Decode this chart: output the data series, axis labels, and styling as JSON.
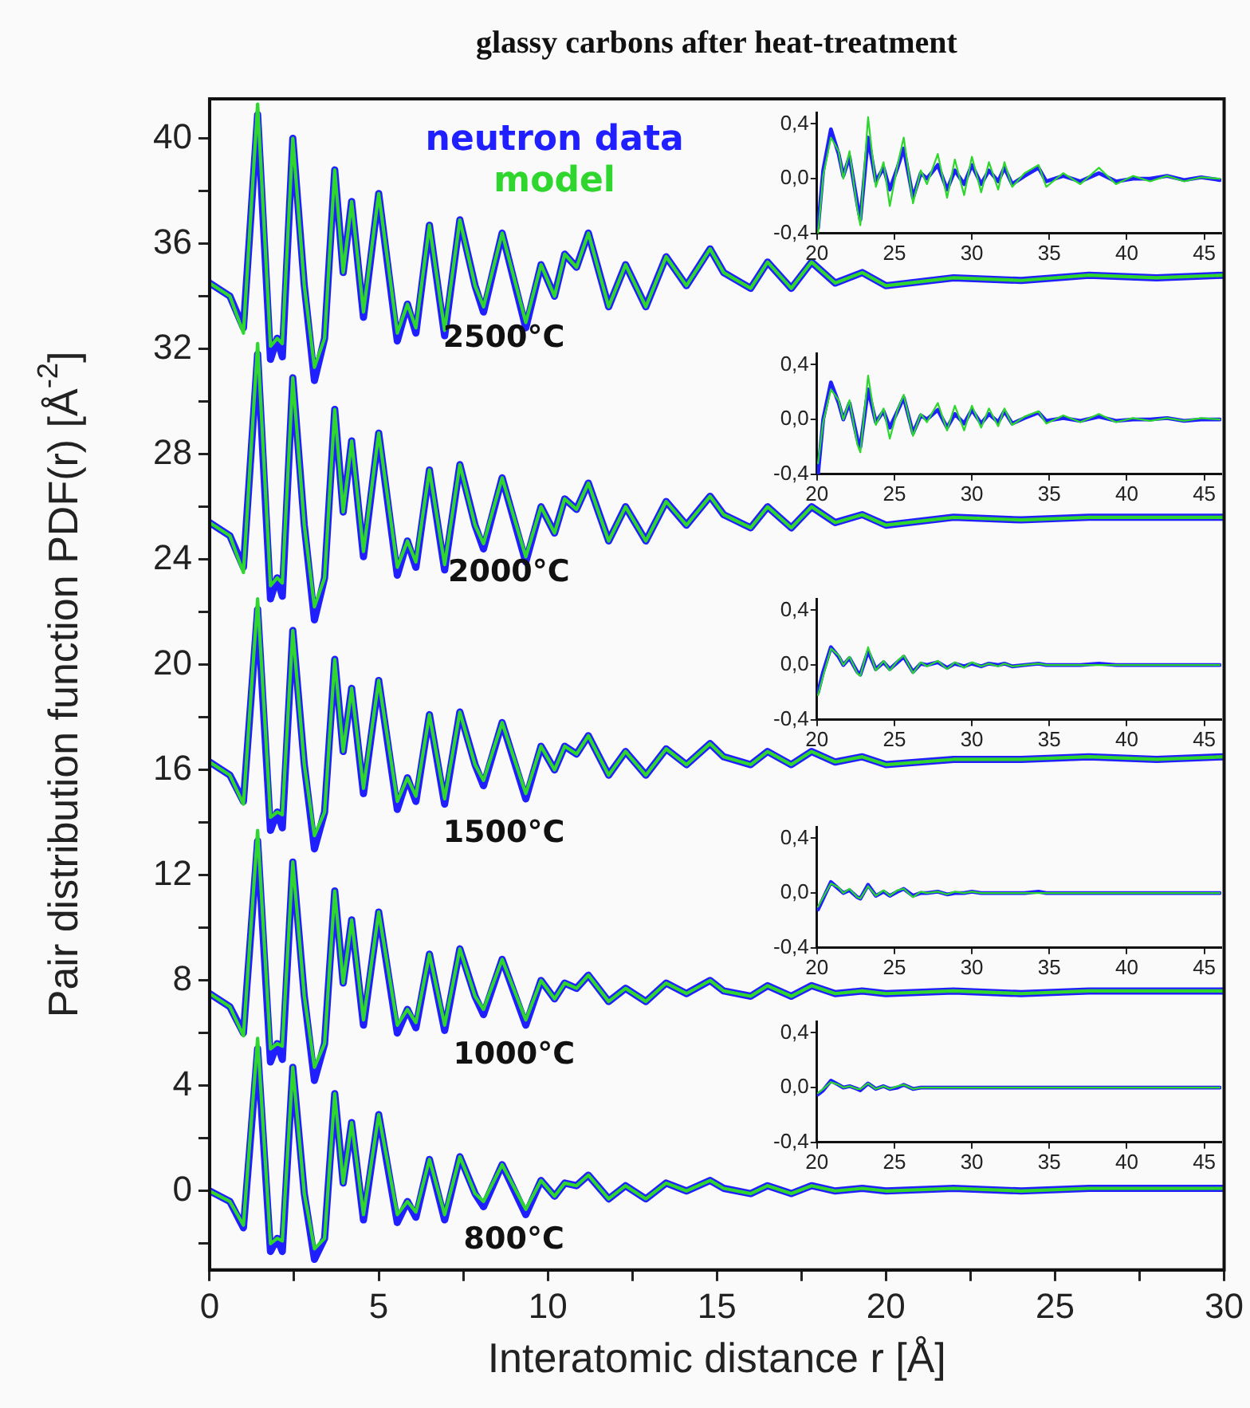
{
  "chart_data": [
    {
      "type": "line",
      "title": "glassy carbons after heat-treatment",
      "xlabel": "Interatomic distance r [Å]",
      "ylabel": "Pair distribution function PDF(r) [Å$^{-2}$]",
      "legend": "top",
      "marker": "none",
      "grid": false,
      "xlim": [
        0,
        30
      ],
      "ylim": [
        -3,
        41.5
      ],
      "xticks": [
        0,
        {
          "value": 2.5,
          "label": null
        },
        5,
        {
          "value": 7.5,
          "label": null
        },
        10,
        {
          "value": 12.5,
          "label": null
        },
        15,
        {
          "value": 17.5,
          "label": null
        },
        20,
        {
          "value": 22.5,
          "label": null
        },
        25,
        {
          "value": 27.5,
          "label": null
        },
        30
      ],
      "yticks": [
        {
          "value": -2,
          "label": null
        },
        0,
        {
          "value": 2,
          "label": null
        },
        4,
        {
          "value": 6,
          "label": null
        },
        8,
        {
          "value": 10,
          "label": null
        },
        12,
        {
          "value": 14,
          "label": null
        },
        16,
        {
          "value": 18,
          "label": null
        },
        20,
        {
          "value": 22,
          "label": null
        },
        24,
        {
          "value": 26,
          "label": null
        },
        28,
        {
          "value": 30,
          "label": null
        },
        32,
        {
          "value": 34,
          "label": null
        },
        36,
        {
          "value": 38,
          "label": null
        },
        40
      ],
      "x": [
        0,
        0.6,
        1.0,
        1.42,
        1.8,
        2.0,
        2.15,
        2.46,
        2.8,
        3.1,
        3.4,
        3.7,
        3.95,
        4.2,
        4.55,
        5.0,
        5.55,
        5.85,
        6.1,
        6.5,
        6.95,
        7.4,
        7.85,
        8.1,
        8.65,
        9.35,
        9.8,
        10.2,
        10.5,
        10.85,
        11.2,
        11.8,
        12.3,
        12.9,
        13.5,
        14.1,
        14.8,
        15.2,
        16.0,
        16.5,
        17.2,
        17.8,
        18.5,
        19.3,
        20,
        22,
        24,
        26,
        28,
        30
      ],
      "series": [
        {
          "name": "neutron data",
          "color": "#1f1fff",
          "values": [
            34.5,
            34.0,
            32.8,
            40.9,
            31.6,
            32.4,
            31.7,
            40.0,
            34.4,
            30.8,
            32.4,
            38.8,
            34.9,
            37.6,
            33.2,
            37.9,
            32.3,
            33.7,
            32.6,
            36.7,
            32.5,
            36.9,
            34.4,
            33.4,
            36.4,
            32.8,
            35.2,
            34.0,
            35.6,
            35.1,
            36.4,
            33.6,
            35.2,
            33.6,
            35.5,
            34.4,
            35.8,
            34.9,
            34.3,
            35.3,
            34.3,
            35.3,
            34.5,
            34.9,
            34.4,
            34.7,
            34.6,
            34.8,
            34.7,
            34.8
          ]
        },
        {
          "name": "model",
          "color": "#2ed62e",
          "values": [
            34.5,
            34.0,
            32.6,
            41.3,
            32.1,
            32.4,
            32.2,
            40.0,
            34.4,
            31.3,
            32.4,
            38.8,
            34.9,
            37.6,
            33.4,
            37.9,
            32.6,
            33.7,
            32.8,
            36.7,
            32.7,
            36.9,
            34.4,
            33.6,
            36.4,
            33.0,
            35.2,
            34.0,
            35.6,
            35.1,
            36.4,
            33.6,
            35.2,
            33.6,
            35.5,
            34.4,
            35.8,
            34.9,
            34.3,
            35.3,
            34.3,
            35.3,
            34.5,
            34.9,
            34.4,
            34.7,
            34.6,
            34.8,
            34.7,
            34.8
          ]
        },
        {
          "color": "#1f1fff",
          "values": [
            25.4,
            24.9,
            23.7,
            31.8,
            22.5,
            23.3,
            22.6,
            30.9,
            25.3,
            21.7,
            23.3,
            29.7,
            25.8,
            28.5,
            24.1,
            28.8,
            23.4,
            24.7,
            23.7,
            27.4,
            23.6,
            27.6,
            25.3,
            24.4,
            27.1,
            23.9,
            26.0,
            25.0,
            26.3,
            25.9,
            26.9,
            24.7,
            26.0,
            24.7,
            26.2,
            25.3,
            26.4,
            25.7,
            25.2,
            26.0,
            25.2,
            26.0,
            25.4,
            25.7,
            25.3,
            25.6,
            25.5,
            25.6,
            25.6,
            25.6
          ]
        },
        {
          "color": "#2ed62e",
          "values": [
            25.4,
            24.9,
            23.5,
            32.2,
            23.0,
            23.3,
            23.1,
            30.9,
            25.3,
            22.2,
            23.3,
            29.7,
            25.8,
            28.5,
            24.3,
            28.8,
            23.7,
            24.7,
            23.9,
            27.4,
            23.8,
            27.6,
            25.3,
            24.6,
            27.1,
            24.1,
            26.0,
            25.0,
            26.3,
            25.9,
            26.9,
            24.7,
            26.0,
            24.7,
            26.2,
            25.3,
            26.4,
            25.7,
            25.2,
            26.0,
            25.2,
            26.0,
            25.4,
            25.7,
            25.3,
            25.6,
            25.5,
            25.6,
            25.6,
            25.6
          ]
        },
        {
          "color": "#1f1fff",
          "values": [
            16.3,
            15.8,
            14.8,
            22.1,
            13.7,
            14.4,
            13.8,
            21.3,
            16.2,
            13.0,
            14.4,
            20.2,
            16.7,
            19.1,
            15.1,
            19.4,
            14.5,
            15.7,
            14.8,
            18.1,
            14.7,
            18.2,
            16.2,
            15.4,
            17.8,
            14.9,
            16.9,
            16.0,
            16.9,
            16.6,
            17.3,
            15.8,
            16.7,
            15.8,
            16.8,
            16.2,
            17.0,
            16.5,
            16.2,
            16.7,
            16.2,
            16.7,
            16.3,
            16.5,
            16.2,
            16.4,
            16.4,
            16.5,
            16.4,
            16.5
          ]
        },
        {
          "color": "#2ed62e",
          "values": [
            16.3,
            15.8,
            14.7,
            22.5,
            14.2,
            14.4,
            14.3,
            21.3,
            16.2,
            13.5,
            14.4,
            20.2,
            16.7,
            19.1,
            15.3,
            19.4,
            14.8,
            15.7,
            15.0,
            18.1,
            14.9,
            18.2,
            16.2,
            15.6,
            17.8,
            15.1,
            16.9,
            16.0,
            16.9,
            16.6,
            17.3,
            15.8,
            16.7,
            15.8,
            16.8,
            16.2,
            17.0,
            16.5,
            16.2,
            16.7,
            16.2,
            16.7,
            16.3,
            16.5,
            16.2,
            16.4,
            16.4,
            16.5,
            16.4,
            16.5
          ]
        },
        {
          "color": "#1f1fff",
          "values": [
            7.5,
            7.0,
            6.0,
            13.3,
            4.9,
            5.6,
            5.0,
            12.5,
            7.4,
            4.2,
            5.6,
            11.4,
            7.9,
            10.3,
            6.3,
            10.6,
            6.0,
            6.9,
            6.2,
            9.0,
            6.1,
            9.2,
            7.4,
            6.7,
            8.8,
            6.3,
            8.0,
            7.3,
            7.9,
            7.7,
            8.2,
            7.2,
            7.7,
            7.2,
            7.9,
            7.5,
            8.0,
            7.6,
            7.4,
            7.8,
            7.4,
            7.8,
            7.5,
            7.6,
            7.5,
            7.6,
            7.5,
            7.6,
            7.6,
            7.6
          ]
        },
        {
          "color": "#2ed62e",
          "values": [
            7.5,
            7.0,
            5.9,
            13.7,
            5.4,
            5.6,
            5.5,
            12.5,
            7.4,
            4.7,
            5.6,
            11.4,
            7.9,
            10.3,
            6.5,
            10.6,
            6.3,
            6.9,
            6.4,
            9.0,
            6.3,
            9.2,
            7.4,
            6.9,
            8.8,
            6.5,
            8.0,
            7.3,
            7.9,
            7.7,
            8.2,
            7.2,
            7.7,
            7.2,
            7.9,
            7.5,
            8.0,
            7.6,
            7.4,
            7.8,
            7.4,
            7.8,
            7.5,
            7.6,
            7.5,
            7.6,
            7.5,
            7.6,
            7.6,
            7.6
          ]
        },
        {
          "color": "#1f1fff",
          "values": [
            0,
            -0.4,
            -1.4,
            5.4,
            -2.3,
            -1.8,
            -2.3,
            4.7,
            -0.1,
            -2.6,
            -1.8,
            3.7,
            0.3,
            2.6,
            -1.1,
            2.9,
            -1.2,
            -0.4,
            -1.0,
            1.2,
            -1.1,
            1.3,
            -0.1,
            -0.6,
            1.0,
            -0.9,
            0.4,
            -0.2,
            0.3,
            0.2,
            0.6,
            -0.3,
            0.2,
            -0.3,
            0.3,
            0,
            0.4,
            0.1,
            -0.1,
            0.2,
            -0.1,
            0.2,
            0,
            0.1,
            0,
            0.1,
            0,
            0.1,
            0.1,
            0.1
          ]
        },
        {
          "color": "#2ed62e",
          "values": [
            0,
            -0.4,
            -1.3,
            5.8,
            -2.0,
            -1.8,
            -1.9,
            4.7,
            -0.1,
            -2.2,
            -1.8,
            3.7,
            0.3,
            2.6,
            -0.9,
            2.9,
            -0.9,
            -0.4,
            -0.8,
            1.2,
            -0.9,
            1.3,
            -0.1,
            -0.4,
            1.0,
            -0.7,
            0.4,
            -0.2,
            0.3,
            0.2,
            0.6,
            -0.3,
            0.2,
            -0.3,
            0.3,
            0,
            0.4,
            0.1,
            -0.1,
            0.2,
            -0.1,
            0.2,
            0,
            0.1,
            0,
            0.1,
            0,
            0.1,
            0.1,
            0.1
          ]
        }
      ],
      "annotations": [
        "2500°C",
        "2000°C",
        "1500°C",
        "1000°C",
        "800°C"
      ]
    },
    {
      "type": "line",
      "marker": "none",
      "legend": false,
      "xlim": [
        20,
        46.1
      ],
      "ylim": [
        -0.4,
        0.48
      ],
      "xticks": [
        20,
        25,
        30,
        35,
        40,
        45
      ],
      "yticks": [
        {
          "value": -0.4,
          "label": "-0,4"
        },
        {
          "value": 0,
          "label": "0,0"
        },
        {
          "value": 0.4,
          "label": "0,4"
        }
      ],
      "x": [
        20.07,
        20.4,
        20.9,
        21.4,
        21.7,
        22.1,
        22.6,
        22.8,
        23.3,
        23.8,
        24.3,
        24.7,
        25.2,
        25.6,
        26.2,
        26.7,
        27.1,
        27.8,
        28.4,
        28.9,
        29.5,
        30.0,
        30.6,
        31.1,
        31.7,
        32.1,
        32.6,
        33.4,
        34.3,
        34.8,
        35.9,
        37.0,
        38.2,
        39.3,
        40.4,
        41.5,
        42.6,
        43.7,
        44.8,
        46.0
      ],
      "series": [
        {
          "color": "#1f1fff",
          "values": [
            -0.36,
            0.06,
            0.36,
            0.18,
            0.02,
            0.16,
            -0.18,
            -0.3,
            0.3,
            -0.02,
            0.08,
            -0.08,
            0.08,
            0.22,
            -0.14,
            0.04,
            0,
            0.1,
            -0.08,
            0.06,
            -0.04,
            0.1,
            -0.04,
            0.06,
            -0.02,
            0.08,
            -0.04,
            0.02,
            0.08,
            -0.02,
            0.02,
            -0.02,
            0.04,
            -0.02,
            0,
            0,
            0.02,
            -0.01,
            0.01,
            -0.01
          ]
        },
        {
          "color": "#2ed62e",
          "values": [
            -0.4,
            0.02,
            0.3,
            0.2,
            0.0,
            0.2,
            -0.22,
            -0.34,
            0.45,
            -0.06,
            0.12,
            -0.2,
            0.1,
            0.3,
            -0.18,
            0.06,
            -0.04,
            0.18,
            -0.14,
            0.14,
            -0.12,
            0.16,
            -0.1,
            0.12,
            -0.08,
            0.12,
            -0.06,
            0.04,
            0.1,
            -0.06,
            0.04,
            -0.04,
            0.08,
            -0.04,
            0.02,
            -0.02,
            0.02,
            -0.02,
            0.01,
            0.0
          ]
        }
      ]
    },
    {
      "type": "line",
      "marker": "none",
      "legend": false,
      "xlim": [
        20,
        46.1
      ],
      "ylim": [
        -0.4,
        0.48
      ],
      "xticks": [
        20,
        25,
        30,
        35,
        40,
        45
      ],
      "yticks": [
        {
          "value": -0.4,
          "label": "-0,4"
        },
        {
          "value": 0,
          "label": "0,0"
        },
        {
          "value": 0.4,
          "label": "0,4"
        }
      ],
      "x": [
        20.07,
        20.4,
        20.9,
        21.4,
        21.7,
        22.1,
        22.6,
        22.8,
        23.3,
        23.8,
        24.3,
        24.7,
        25.2,
        25.6,
        26.2,
        26.7,
        27.1,
        27.8,
        28.4,
        28.9,
        29.5,
        30.0,
        30.6,
        31.1,
        31.7,
        32.1,
        32.6,
        33.4,
        34.3,
        34.8,
        35.9,
        37.0,
        38.2,
        39.3,
        40.4,
        41.5,
        42.6,
        43.7,
        44.8,
        46.0
      ],
      "series": [
        {
          "color": "#1f1fff",
          "values": [
            -0.4,
            0.0,
            0.27,
            0.12,
            0.0,
            0.12,
            -0.14,
            -0.2,
            0.22,
            -0.02,
            0.06,
            -0.06,
            0.06,
            0.16,
            -0.1,
            0.03,
            0,
            0.07,
            -0.06,
            0.04,
            -0.03,
            0.07,
            -0.03,
            0.04,
            -0.02,
            0.06,
            -0.03,
            0.01,
            0.05,
            -0.01,
            0.01,
            -0.01,
            0.02,
            -0.01,
            0,
            0,
            0.01,
            -0.01,
            0,
            0
          ]
        },
        {
          "color": "#2ed62e",
          "values": [
            -0.32,
            -0.02,
            0.22,
            0.14,
            0.0,
            0.14,
            -0.18,
            -0.24,
            0.32,
            -0.04,
            0.08,
            -0.14,
            0.07,
            0.18,
            -0.12,
            0.04,
            -0.02,
            0.12,
            -0.08,
            0.1,
            -0.08,
            0.1,
            -0.06,
            0.08,
            -0.05,
            0.08,
            -0.04,
            0.02,
            0.06,
            -0.03,
            0.03,
            -0.02,
            0.04,
            -0.02,
            0.01,
            -0.01,
            0.01,
            -0.01,
            0.01,
            0
          ]
        }
      ]
    },
    {
      "type": "line",
      "marker": "none",
      "legend": false,
      "xlim": [
        20,
        46.1
      ],
      "ylim": [
        -0.4,
        0.48
      ],
      "xticks": [
        20,
        25,
        30,
        35,
        40,
        45
      ],
      "yticks": [
        {
          "value": -0.4,
          "label": "-0,4"
        },
        {
          "value": 0,
          "label": "0,0"
        },
        {
          "value": 0.4,
          "label": "0,4"
        }
      ],
      "x": [
        20.07,
        20.4,
        20.9,
        21.4,
        21.7,
        22.1,
        22.6,
        22.8,
        23.3,
        23.8,
        24.3,
        24.7,
        25.2,
        25.6,
        26.2,
        26.7,
        27.1,
        27.8,
        28.4,
        28.9,
        29.5,
        30.0,
        30.6,
        31.1,
        31.7,
        32.1,
        32.6,
        33.4,
        34.3,
        34.8,
        35.9,
        37.0,
        38.2,
        39.3,
        40.4,
        41.5,
        42.6,
        43.7,
        44.8,
        46.0
      ],
      "series": [
        {
          "color": "#1f1fff",
          "values": [
            -0.2,
            -0.05,
            0.13,
            0.06,
            0.0,
            0.05,
            -0.05,
            -0.07,
            0.1,
            -0.03,
            0.02,
            -0.03,
            0.02,
            0.06,
            -0.05,
            0.01,
            0,
            0.02,
            -0.02,
            0.01,
            -0.01,
            0.01,
            -0.01,
            0.01,
            0,
            0.01,
            -0.01,
            0,
            0.01,
            0,
            0,
            0,
            0.01,
            0,
            0,
            0,
            0,
            0,
            0,
            0
          ]
        },
        {
          "color": "#2ed62e",
          "values": [
            -0.22,
            -0.08,
            0.12,
            0.07,
            0.0,
            0.06,
            -0.06,
            -0.08,
            0.13,
            -0.04,
            0.03,
            -0.04,
            0.03,
            0.07,
            -0.06,
            0.02,
            -0.01,
            0.03,
            -0.03,
            0.02,
            -0.02,
            0.02,
            -0.01,
            0.01,
            -0.01,
            0.01,
            -0.01,
            0,
            0.01,
            0,
            0,
            0,
            0,
            0,
            0,
            0,
            0,
            0,
            0,
            0
          ]
        }
      ]
    },
    {
      "type": "line",
      "marker": "none",
      "legend": false,
      "xlim": [
        20,
        46.1
      ],
      "ylim": [
        -0.4,
        0.48
      ],
      "xticks": [
        20,
        25,
        30,
        35,
        40,
        45
      ],
      "yticks": [
        {
          "value": -0.4,
          "label": "-0,4"
        },
        {
          "value": 0,
          "label": "0,0"
        },
        {
          "value": 0.4,
          "label": "0,4"
        }
      ],
      "x": [
        20.07,
        20.4,
        20.9,
        21.4,
        21.7,
        22.1,
        22.6,
        22.8,
        23.3,
        23.8,
        24.3,
        24.7,
        25.2,
        25.6,
        26.2,
        26.7,
        27.1,
        27.8,
        28.4,
        28.9,
        29.5,
        30.0,
        30.6,
        31.1,
        31.7,
        32.1,
        32.6,
        33.4,
        34.3,
        34.8,
        35.9,
        37.0,
        38.2,
        39.3,
        40.4,
        41.5,
        42.6,
        43.7,
        44.8,
        46.0
      ],
      "series": [
        {
          "color": "#1f1fff",
          "values": [
            -0.12,
            -0.04,
            0.08,
            0.03,
            0,
            0.02,
            -0.03,
            -0.04,
            0.06,
            -0.02,
            0.01,
            -0.02,
            0.01,
            0.03,
            -0.02,
            0,
            0,
            0.01,
            -0.01,
            0,
            0,
            0.01,
            0,
            0,
            0,
            0,
            0,
            0,
            0.01,
            0,
            0,
            0,
            0,
            0,
            0,
            0,
            0,
            0,
            0,
            0
          ]
        },
        {
          "color": "#2ed62e",
          "values": [
            -0.1,
            -0.03,
            0.07,
            0.04,
            0,
            0.03,
            -0.03,
            -0.04,
            0.05,
            -0.02,
            0.02,
            -0.02,
            0.02,
            0.03,
            -0.03,
            0.01,
            0,
            0.01,
            -0.01,
            0.01,
            0,
            0.01,
            0,
            0,
            0,
            0,
            0,
            0,
            0,
            0,
            0,
            0,
            0,
            0,
            0,
            0,
            0,
            0,
            0,
            0
          ]
        }
      ]
    },
    {
      "type": "line",
      "marker": "none",
      "legend": false,
      "xlim": [
        20,
        46.1
      ],
      "ylim": [
        -0.4,
        0.48
      ],
      "xticks": [
        20,
        25,
        30,
        35,
        40,
        45
      ],
      "yticks": [
        {
          "value": -0.4,
          "label": "-0,4"
        },
        {
          "value": 0,
          "label": "0,0"
        },
        {
          "value": 0.4,
          "label": "0,4"
        }
      ],
      "x": [
        20.07,
        20.4,
        20.9,
        21.4,
        21.7,
        22.1,
        22.6,
        22.8,
        23.3,
        23.8,
        24.3,
        24.7,
        25.2,
        25.6,
        26.2,
        26.7,
        27.1,
        27.8,
        28.4,
        28.9,
        29.5,
        30.0,
        30.6,
        31.1,
        31.7,
        32.1,
        32.6,
        33.4,
        34.3,
        34.8,
        35.9,
        37.0,
        38.2,
        39.3,
        40.4,
        41.5,
        42.6,
        43.7,
        44.8,
        46.0
      ],
      "series": [
        {
          "color": "#1f1fff",
          "values": [
            -0.05,
            -0.02,
            0.05,
            0.02,
            0,
            0.01,
            -0.01,
            -0.02,
            0.03,
            -0.01,
            0.01,
            -0.01,
            0,
            0.02,
            -0.01,
            0,
            0,
            0,
            0,
            0,
            0,
            0,
            0,
            0,
            0,
            0,
            0,
            0,
            0,
            0,
            0,
            0,
            0,
            0,
            0,
            0,
            0,
            0,
            0,
            0
          ]
        },
        {
          "color": "#2ed62e",
          "values": [
            -0.04,
            -0.01,
            0.04,
            0.02,
            0,
            0.01,
            -0.01,
            -0.01,
            0.03,
            -0.01,
            0.01,
            -0.01,
            0.01,
            0.02,
            -0.01,
            0,
            0,
            0,
            0,
            0,
            0,
            0,
            0,
            0,
            0,
            0,
            0,
            0,
            0,
            0,
            0,
            0,
            0,
            0,
            0,
            0,
            0,
            0,
            0,
            0
          ]
        }
      ]
    }
  ]
}
